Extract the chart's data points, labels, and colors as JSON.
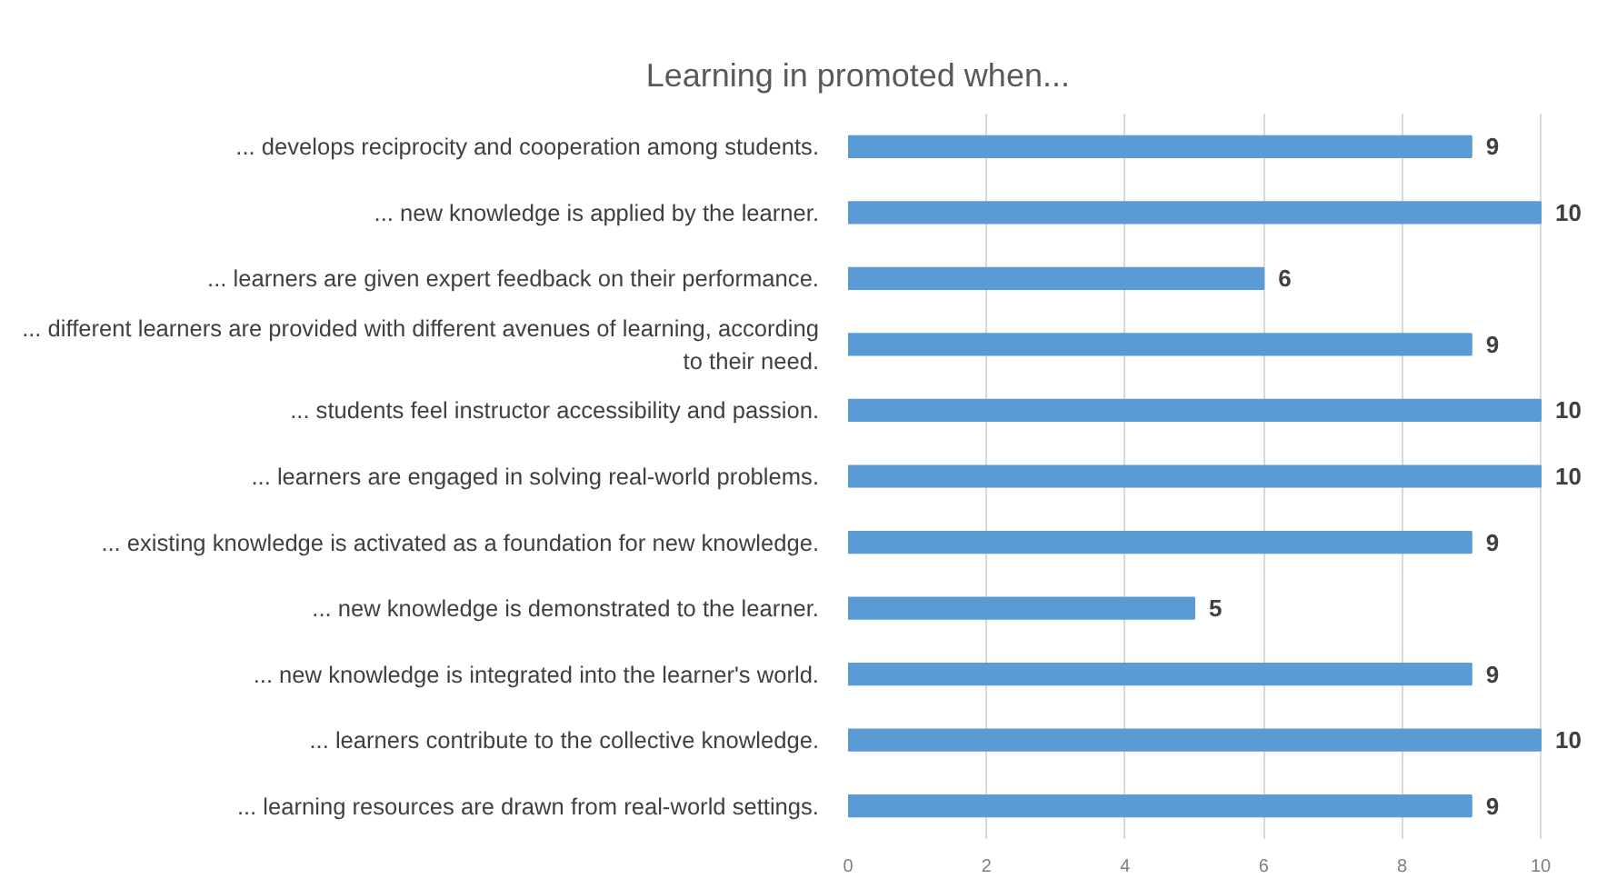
{
  "chart_data": {
    "type": "bar",
    "orientation": "horizontal",
    "title": "Learning in promoted when...",
    "categories": [
      "... develops reciprocity and cooperation among students.",
      "... new knowledge is applied by the learner.",
      "... learners are given expert feedback on their performance.",
      "... different learners are provided with different avenues of learning, according to their need.",
      "... students feel instructor accessibility and passion.",
      "... learners are engaged in solving real-world problems.",
      "... existing knowledge is activated as a foundation for new knowledge.",
      "... new knowledge is demonstrated to the learner.",
      "... new knowledge is integrated into the learner's world.",
      "... learners contribute to the collective knowledge.",
      "... learning resources are drawn from real-world settings."
    ],
    "values": [
      9,
      10,
      6,
      9,
      10,
      10,
      9,
      5,
      9,
      10,
      9
    ],
    "color": "#5b9bd5",
    "xlim": [
      0,
      10
    ],
    "xticks": [
      0,
      2,
      4,
      6,
      8,
      10
    ],
    "grid": "x",
    "data_labels": true
  }
}
